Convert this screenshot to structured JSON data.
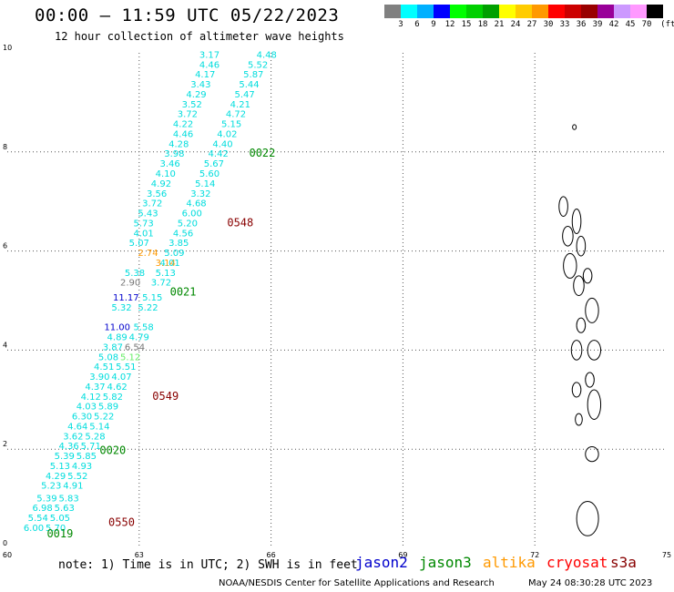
{
  "header": {
    "title": "00:00 – 11:59 UTC 05/22/2023",
    "subtitle": "12 hour collection of altimeter wave heights"
  },
  "colorbar": {
    "unit": "(ft)",
    "swatches": [
      "#808080",
      "#00ffff",
      "#00b0ff",
      "#0000ff",
      "#00ff00",
      "#00d000",
      "#00a000",
      "#ffff00",
      "#ffcc00",
      "#ff9900",
      "#ff0000",
      "#cc0000",
      "#990000",
      "#990099",
      "#cc99ff",
      "#ff99ff",
      "#000000"
    ],
    "labels": [
      "3",
      "6",
      "9",
      "12",
      "15",
      "18",
      "21",
      "24",
      "27",
      "30",
      "33",
      "36",
      "39",
      "42",
      "45",
      "70"
    ]
  },
  "colors": {
    "jason2": "#0000cc",
    "jason3": "#008800",
    "altika": "#ff9900",
    "cryosat": "#ff0000",
    "s3a": "#880000",
    "cyan": "#00dddd",
    "grid": "#555555"
  },
  "axes": {
    "x_ticks": [
      "60",
      "63",
      "66",
      "69",
      "72",
      "75"
    ],
    "y_ticks": [
      "0",
      "2",
      "4",
      "6",
      "8",
      "10"
    ]
  },
  "chart_data": {
    "type": "scatter",
    "xlim": [
      60,
      75
    ],
    "ylim": [
      0,
      10
    ],
    "grid": true,
    "observations": [
      {
        "lon": 64.6,
        "lat": 9.9,
        "v": "3.17",
        "c": "cyan"
      },
      {
        "lon": 65.9,
        "lat": 9.9,
        "v": "4.48",
        "c": "cyan"
      },
      {
        "lon": 64.6,
        "lat": 9.7,
        "v": "4.46",
        "c": "cyan"
      },
      {
        "lon": 65.7,
        "lat": 9.7,
        "v": "5.52",
        "c": "cyan"
      },
      {
        "lon": 64.5,
        "lat": 9.5,
        "v": "4.17",
        "c": "cyan"
      },
      {
        "lon": 65.6,
        "lat": 9.5,
        "v": "5.87",
        "c": "cyan"
      },
      {
        "lon": 64.4,
        "lat": 9.3,
        "v": "3.43",
        "c": "cyan"
      },
      {
        "lon": 65.5,
        "lat": 9.3,
        "v": "5.44",
        "c": "cyan"
      },
      {
        "lon": 64.3,
        "lat": 9.1,
        "v": "4.29",
        "c": "cyan"
      },
      {
        "lon": 65.4,
        "lat": 9.1,
        "v": "5.47",
        "c": "cyan"
      },
      {
        "lon": 64.2,
        "lat": 8.9,
        "v": "3.52",
        "c": "cyan"
      },
      {
        "lon": 65.3,
        "lat": 8.9,
        "v": "4.21",
        "c": "cyan"
      },
      {
        "lon": 64.1,
        "lat": 8.7,
        "v": "3.72",
        "c": "cyan"
      },
      {
        "lon": 65.2,
        "lat": 8.7,
        "v": "4.72",
        "c": "cyan"
      },
      {
        "lon": 64.0,
        "lat": 8.5,
        "v": "4.22",
        "c": "cyan"
      },
      {
        "lon": 65.1,
        "lat": 8.5,
        "v": "5.15",
        "c": "cyan"
      },
      {
        "lon": 64.0,
        "lat": 8.3,
        "v": "4.46",
        "c": "cyan"
      },
      {
        "lon": 65.0,
        "lat": 8.3,
        "v": "4.02",
        "c": "cyan"
      },
      {
        "lon": 63.9,
        "lat": 8.1,
        "v": "4.28",
        "c": "cyan"
      },
      {
        "lon": 64.9,
        "lat": 8.1,
        "v": "4.40",
        "c": "cyan"
      },
      {
        "lon": 63.8,
        "lat": 7.9,
        "v": "3.98",
        "c": "cyan"
      },
      {
        "lon": 64.8,
        "lat": 7.9,
        "v": "4.42",
        "c": "cyan"
      },
      {
        "lon": 63.7,
        "lat": 7.7,
        "v": "3.46",
        "c": "cyan"
      },
      {
        "lon": 64.7,
        "lat": 7.7,
        "v": "5.67",
        "c": "cyan"
      },
      {
        "lon": 63.6,
        "lat": 7.5,
        "v": "4.10",
        "c": "cyan"
      },
      {
        "lon": 64.6,
        "lat": 7.5,
        "v": "5.60",
        "c": "cyan"
      },
      {
        "lon": 63.5,
        "lat": 7.3,
        "v": "4.92",
        "c": "cyan"
      },
      {
        "lon": 64.5,
        "lat": 7.3,
        "v": "5.14",
        "c": "cyan"
      },
      {
        "lon": 63.4,
        "lat": 7.1,
        "v": "3.56",
        "c": "cyan"
      },
      {
        "lon": 64.4,
        "lat": 7.1,
        "v": "3.32",
        "c": "cyan"
      },
      {
        "lon": 63.3,
        "lat": 6.9,
        "v": "3.72",
        "c": "cyan"
      },
      {
        "lon": 64.3,
        "lat": 6.9,
        "v": "4.68",
        "c": "cyan"
      },
      {
        "lon": 63.2,
        "lat": 6.7,
        "v": "5.43",
        "c": "cyan"
      },
      {
        "lon": 64.2,
        "lat": 6.7,
        "v": "6.00",
        "c": "cyan"
      },
      {
        "lon": 63.1,
        "lat": 6.5,
        "v": "5.73",
        "c": "cyan"
      },
      {
        "lon": 64.1,
        "lat": 6.5,
        "v": "5.20",
        "c": "cyan"
      },
      {
        "lon": 63.1,
        "lat": 6.3,
        "v": "4.01",
        "c": "cyan"
      },
      {
        "lon": 64.0,
        "lat": 6.3,
        "v": "4.56",
        "c": "cyan"
      },
      {
        "lon": 63.0,
        "lat": 6.1,
        "v": "5.07",
        "c": "cyan"
      },
      {
        "lon": 63.9,
        "lat": 6.1,
        "v": "3.85",
        "c": "cyan"
      },
      {
        "lon": 63.2,
        "lat": 5.9,
        "v": "2.74",
        "c": "altika"
      },
      {
        "lon": 63.8,
        "lat": 5.9,
        "v": "5.09",
        "c": "cyan"
      },
      {
        "lon": 63.6,
        "lat": 5.7,
        "v": "3.14",
        "c": "altika"
      },
      {
        "lon": 63.7,
        "lat": 5.7,
        "v": "4.01",
        "c": "cyan"
      },
      {
        "lon": 62.9,
        "lat": 5.5,
        "v": "5.38",
        "c": "cyan"
      },
      {
        "lon": 63.6,
        "lat": 5.5,
        "v": "5.13",
        "c": "cyan"
      },
      {
        "lon": 62.8,
        "lat": 5.3,
        "v": "2.90",
        "c": "gray"
      },
      {
        "lon": 63.5,
        "lat": 5.3,
        "v": "3.72",
        "c": "cyan"
      },
      {
        "lon": 62.7,
        "lat": 5.0,
        "v": "11.17",
        "c": "jason2"
      },
      {
        "lon": 63.3,
        "lat": 5.0,
        "v": "5.15",
        "c": "cyan"
      },
      {
        "lon": 62.6,
        "lat": 4.8,
        "v": "5.32",
        "c": "cyan"
      },
      {
        "lon": 63.2,
        "lat": 4.8,
        "v": "5.22",
        "c": "cyan"
      },
      {
        "lon": 62.5,
        "lat": 4.4,
        "v": "11.00",
        "c": "jason2"
      },
      {
        "lon": 63.1,
        "lat": 4.4,
        "v": "5.58",
        "c": "cyan"
      },
      {
        "lon": 62.5,
        "lat": 4.2,
        "v": "4.89",
        "c": "cyan"
      },
      {
        "lon": 63.0,
        "lat": 4.2,
        "v": "4.79",
        "c": "cyan"
      },
      {
        "lon": 62.4,
        "lat": 4.0,
        "v": "3.87",
        "c": "cyan"
      },
      {
        "lon": 62.9,
        "lat": 4.0,
        "v": "6.54",
        "c": "gray"
      },
      {
        "lon": 62.3,
        "lat": 3.8,
        "v": "5.08",
        "c": "cyan"
      },
      {
        "lon": 62.8,
        "lat": 3.8,
        "v": "5.12",
        "c": "green"
      },
      {
        "lon": 62.2,
        "lat": 3.6,
        "v": "4.51",
        "c": "cyan"
      },
      {
        "lon": 62.7,
        "lat": 3.6,
        "v": "5.51",
        "c": "cyan"
      },
      {
        "lon": 62.1,
        "lat": 3.4,
        "v": "3.90",
        "c": "cyan"
      },
      {
        "lon": 62.6,
        "lat": 3.4,
        "v": "4.07",
        "c": "cyan"
      },
      {
        "lon": 62.0,
        "lat": 3.2,
        "v": "4.37",
        "c": "cyan"
      },
      {
        "lon": 62.5,
        "lat": 3.2,
        "v": "4.62",
        "c": "cyan"
      },
      {
        "lon": 61.9,
        "lat": 3.0,
        "v": "4.12",
        "c": "cyan"
      },
      {
        "lon": 62.4,
        "lat": 3.0,
        "v": "5.82",
        "c": "cyan"
      },
      {
        "lon": 61.8,
        "lat": 2.8,
        "v": "4.03",
        "c": "cyan"
      },
      {
        "lon": 62.3,
        "lat": 2.8,
        "v": "5.89",
        "c": "cyan"
      },
      {
        "lon": 61.7,
        "lat": 2.6,
        "v": "6.30",
        "c": "cyan"
      },
      {
        "lon": 62.2,
        "lat": 2.6,
        "v": "5.22",
        "c": "cyan"
      },
      {
        "lon": 61.6,
        "lat": 2.4,
        "v": "4.64",
        "c": "cyan"
      },
      {
        "lon": 62.1,
        "lat": 2.4,
        "v": "5.14",
        "c": "cyan"
      },
      {
        "lon": 61.5,
        "lat": 2.2,
        "v": "3.62",
        "c": "cyan"
      },
      {
        "lon": 62.0,
        "lat": 2.2,
        "v": "5.28",
        "c": "cyan"
      },
      {
        "lon": 61.4,
        "lat": 2.0,
        "v": "4.36",
        "c": "cyan"
      },
      {
        "lon": 61.9,
        "lat": 2.0,
        "v": "5.71",
        "c": "cyan"
      },
      {
        "lon": 61.3,
        "lat": 1.8,
        "v": "5.39",
        "c": "cyan"
      },
      {
        "lon": 61.8,
        "lat": 1.8,
        "v": "5.85",
        "c": "cyan"
      },
      {
        "lon": 61.2,
        "lat": 1.6,
        "v": "5.13",
        "c": "cyan"
      },
      {
        "lon": 61.7,
        "lat": 1.6,
        "v": "4.93",
        "c": "cyan"
      },
      {
        "lon": 61.1,
        "lat": 1.4,
        "v": "4.29",
        "c": "cyan"
      },
      {
        "lon": 61.6,
        "lat": 1.4,
        "v": "5.52",
        "c": "cyan"
      },
      {
        "lon": 61.0,
        "lat": 1.2,
        "v": "5.23",
        "c": "cyan"
      },
      {
        "lon": 61.5,
        "lat": 1.2,
        "v": "4.91",
        "c": "cyan"
      },
      {
        "lon": 60.9,
        "lat": 0.95,
        "v": "5.39",
        "c": "cyan"
      },
      {
        "lon": 61.4,
        "lat": 0.95,
        "v": "5.83",
        "c": "cyan"
      },
      {
        "lon": 60.8,
        "lat": 0.75,
        "v": "6.98",
        "c": "cyan"
      },
      {
        "lon": 61.3,
        "lat": 0.75,
        "v": "5.63",
        "c": "cyan"
      },
      {
        "lon": 60.7,
        "lat": 0.55,
        "v": "5.54",
        "c": "cyan"
      },
      {
        "lon": 61.2,
        "lat": 0.55,
        "v": "5.05",
        "c": "cyan"
      },
      {
        "lon": 60.6,
        "lat": 0.35,
        "v": "6.00",
        "c": "cyan"
      },
      {
        "lon": 61.1,
        "lat": 0.35,
        "v": "5.70",
        "c": "cyan"
      }
    ],
    "pass_times": [
      {
        "lon": 65.8,
        "lat": 7.9,
        "label": "0022",
        "c": "jason3"
      },
      {
        "lon": 65.3,
        "lat": 6.5,
        "label": "0548",
        "c": "s3a"
      },
      {
        "lon": 64.0,
        "lat": 5.1,
        "label": "0021",
        "c": "jason3"
      },
      {
        "lon": 63.6,
        "lat": 3.0,
        "label": "0549",
        "c": "s3a"
      },
      {
        "lon": 62.4,
        "lat": 1.9,
        "label": "0020",
        "c": "jason3"
      },
      {
        "lon": 62.6,
        "lat": 0.45,
        "label": "0550",
        "c": "s3a"
      },
      {
        "lon": 61.2,
        "lat": 0.22,
        "label": "0019",
        "c": "jason3"
      }
    ]
  },
  "footer": {
    "note": "note: 1) Time is in UTC; 2) SWH is in feet",
    "legend": [
      {
        "name": "jason2",
        "c": "jason2"
      },
      {
        "name": "jason3",
        "c": "jason3"
      },
      {
        "name": "altika",
        "c": "altika"
      },
      {
        "name": "cryosat",
        "c": "cryosat"
      },
      {
        "name": "s3a",
        "c": "s3a"
      }
    ],
    "credit": "NOAA/NESDIS Center for Satellite Applications and Research",
    "timestamp": "May 24 08:30:28 UTC 2023"
  }
}
